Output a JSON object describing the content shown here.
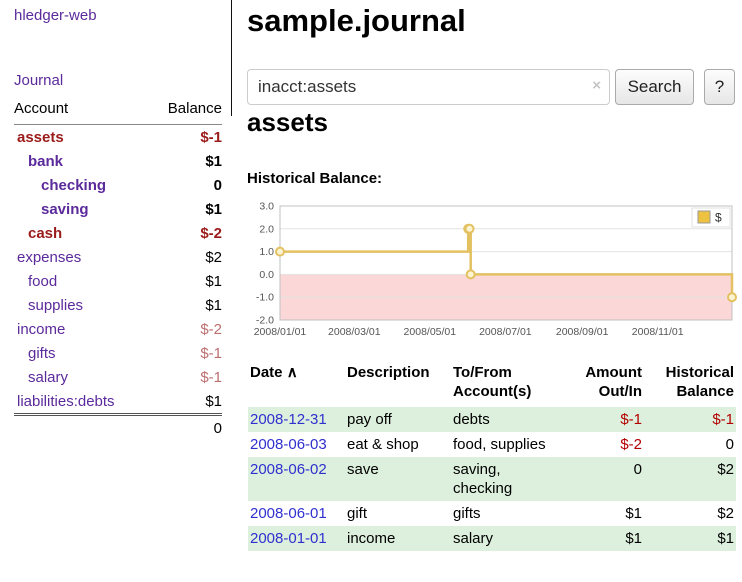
{
  "app_title": "hledger-web",
  "colors": {
    "purple": "#5b2a9b",
    "maroon": "#9b1b1b",
    "softred": "#bb6f6f",
    "blue": "#3030cf",
    "negred": "#b30000",
    "rowgreen": "#ddefdd"
  },
  "sidebar": {
    "journal_link": "Journal",
    "accounts": {
      "header": {
        "account": "Account",
        "balance": "Balance"
      },
      "rows": [
        {
          "name": "assets",
          "balance": "$-1",
          "depth": 0,
          "name_class": "neg strong",
          "balance_class": "neg strong"
        },
        {
          "name": "bank",
          "balance": "$1",
          "depth": 1,
          "name_class": "strong",
          "balance_class": "strong"
        },
        {
          "name": "checking",
          "balance": "0",
          "depth": 2,
          "name_class": "strong",
          "balance_class": "strong"
        },
        {
          "name": "saving",
          "balance": "$1",
          "depth": 2,
          "name_class": "strong",
          "balance_class": "strong"
        },
        {
          "name": "cash",
          "balance": "$-2",
          "depth": 1,
          "name_class": "neg strong",
          "balance_class": "neg strong"
        },
        {
          "name": "expenses",
          "balance": "$2",
          "depth": 0,
          "name_class": "",
          "balance_class": ""
        },
        {
          "name": "food",
          "balance": "$1",
          "depth": 1,
          "name_class": "",
          "balance_class": ""
        },
        {
          "name": "supplies",
          "balance": "$1",
          "depth": 1,
          "name_class": "",
          "balance_class": ""
        },
        {
          "name": "income",
          "balance": "$-2",
          "depth": 0,
          "name_class": "",
          "balance_class": "softneg"
        },
        {
          "name": "gifts",
          "balance": "$-1",
          "depth": 1,
          "name_class": "",
          "balance_class": "softneg"
        },
        {
          "name": "salary",
          "balance": "$-1",
          "depth": 1,
          "name_class": "",
          "balance_class": "softneg"
        },
        {
          "name": "liabilities:debts",
          "balance": "$1",
          "depth": 0,
          "name_class": "",
          "balance_class": ""
        }
      ],
      "total": "0"
    }
  },
  "main": {
    "page_title": "sample.journal",
    "search": {
      "value": "inacct:assets",
      "clear_label": "×",
      "button_label": "Search",
      "help_label": "?"
    },
    "account_heading": "assets",
    "chart_heading": "Historical Balance:"
  },
  "chart_data": {
    "type": "line",
    "step": true,
    "title": "Historical Balance:",
    "legend": [
      {
        "label": "$",
        "color": "#edc240"
      }
    ],
    "legend_position": "top-right",
    "grid": true,
    "ylim": [
      -2.0,
      3.0
    ],
    "yticks": [
      "3.0",
      "2.0",
      "1.0",
      "0.0",
      "-1.0",
      "-2.0"
    ],
    "xlim": [
      "2008-01-01",
      "2008-12-31"
    ],
    "xticks": [
      {
        "label": "2008/01/01",
        "date": "2008-01-01"
      },
      {
        "label": "2008/03/01",
        "date": "2008-03-01"
      },
      {
        "label": "2008/05/01",
        "date": "2008-05-01"
      },
      {
        "label": "2008/07/01",
        "date": "2008-07-01"
      },
      {
        "label": "2008/09/01",
        "date": "2008-09-01"
      },
      {
        "label": "2008/11/01",
        "date": "2008-11-01"
      }
    ],
    "line_color": "#e3c161",
    "marker_fill": "#fcf3d3",
    "negative_region_color": "#fbd7d7",
    "series": [
      {
        "name": "$",
        "points": [
          {
            "date": "2008-01-01",
            "value": 1
          },
          {
            "date": "2008-06-01",
            "value": 2
          },
          {
            "date": "2008-06-02",
            "value": 2
          },
          {
            "date": "2008-06-03",
            "value": 0
          },
          {
            "date": "2008-12-31",
            "value": -1
          }
        ]
      }
    ]
  },
  "register": {
    "headers": {
      "date": "Date",
      "sort_caret": "∧",
      "description": "Description",
      "account": "To/From Account(s)",
      "amount": "Amount Out/In",
      "balance": "Historical Balance"
    },
    "rows": [
      {
        "date": "2008-12-31",
        "description": "pay off",
        "account": "debts",
        "amount": "$-1",
        "balance": "$-1",
        "amount_negative": true,
        "balance_negative": true,
        "shaded": true
      },
      {
        "date": "2008-06-03",
        "description": "eat & shop",
        "account": "food, supplies",
        "amount": "$-2",
        "balance": "0",
        "amount_negative": true,
        "balance_negative": false,
        "shaded": false
      },
      {
        "date": "2008-06-02",
        "description": "save",
        "account": "saving, checking",
        "amount": "0",
        "balance": "$2",
        "amount_negative": false,
        "balance_negative": false,
        "shaded": true
      },
      {
        "date": "2008-06-01",
        "description": "gift",
        "account": "gifts",
        "amount": "$1",
        "balance": "$2",
        "amount_negative": false,
        "balance_negative": false,
        "shaded": false
      },
      {
        "date": "2008-01-01",
        "description": "income",
        "account": "salary",
        "amount": "$1",
        "balance": "$1",
        "amount_negative": false,
        "balance_negative": false,
        "shaded": true
      }
    ]
  }
}
